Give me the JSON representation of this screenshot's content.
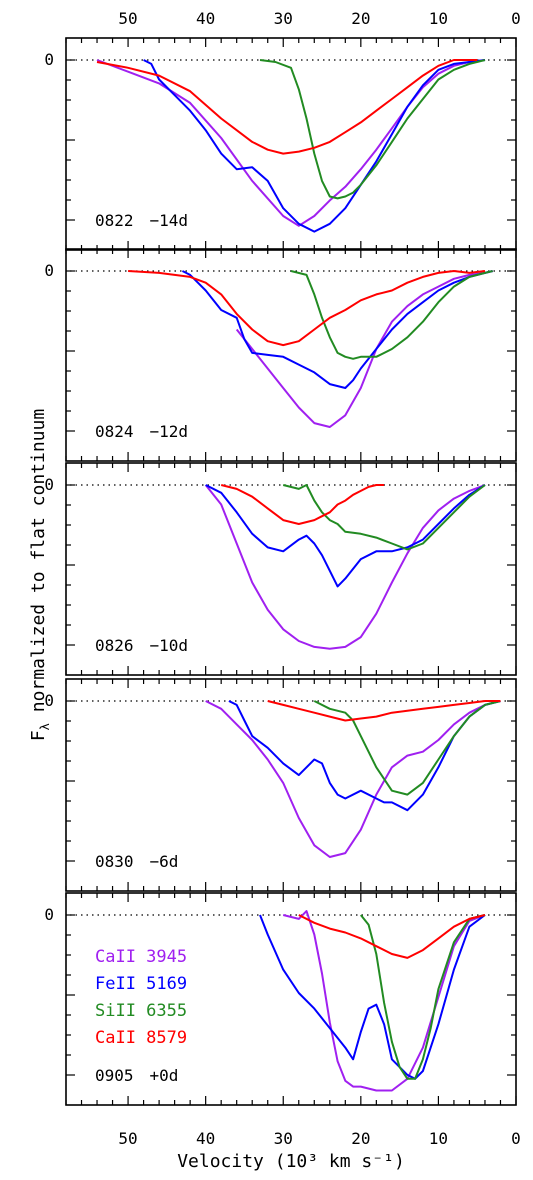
{
  "chart_data": {
    "type": "line",
    "xlabel": "Velocity (10³ km s⁻¹)",
    "ylabel": "F_λ normalized to flat continuum",
    "xlim": [
      58,
      0
    ],
    "x_ticks": [
      "50",
      "40",
      "30",
      "20",
      "10",
      "0"
    ],
    "y_tick": "0",
    "reference_line": "dotted y=0",
    "colors": {
      "CaII_3945": "#a020f0",
      "FeII_5169": "#0000ff",
      "SiII_6355": "#228b22",
      "CaII_8579": "#ff0000"
    },
    "legend": [
      {
        "name": "CaII 3945",
        "color": "#a020f0"
      },
      {
        "name": "FeII 5169",
        "color": "#0000ff"
      },
      {
        "name": "SiII 6355",
        "color": "#228b22"
      },
      {
        "name": "CaII 8579",
        "color": "#ff0000"
      }
    ],
    "panels": [
      {
        "id": "0822",
        "phase": "−14d",
        "series": [
          {
            "name": "CaII 3945",
            "x": [
              54,
              50,
              46,
              42,
              38,
              34,
              30,
              28,
              26,
              24,
              22,
              20,
              18,
              16,
              14,
              12,
              10,
              8,
              6,
              4
            ],
            "y": [
              0,
              -0.06,
              -0.12,
              -0.22,
              -0.4,
              -0.62,
              -0.8,
              -0.85,
              -0.8,
              -0.72,
              -0.65,
              -0.56,
              -0.46,
              -0.35,
              -0.24,
              -0.14,
              -0.07,
              -0.03,
              -0.01,
              0
            ]
          },
          {
            "name": "FeII 5169",
            "x": [
              48,
              47,
              46,
              44,
              42,
              40,
              38,
              36,
              34,
              32,
              30,
              28,
              26,
              24,
              22,
              20,
              18,
              16,
              14,
              12,
              10,
              8,
              6,
              4
            ],
            "y": [
              0,
              -0.02,
              -0.1,
              -0.18,
              -0.26,
              -0.36,
              -0.48,
              -0.56,
              -0.55,
              -0.62,
              -0.76,
              -0.84,
              -0.88,
              -0.84,
              -0.76,
              -0.64,
              -0.52,
              -0.38,
              -0.24,
              -0.13,
              -0.05,
              -0.02,
              -0.01,
              0
            ]
          },
          {
            "name": "SiII 6355",
            "x": [
              33,
              31,
              29,
              28,
              27,
              26,
              25,
              24,
              23,
              22,
              21,
              20,
              18,
              16,
              14,
              12,
              10,
              8,
              6,
              4
            ],
            "y": [
              0,
              -0.01,
              -0.04,
              -0.15,
              -0.3,
              -0.48,
              -0.62,
              -0.7,
              -0.71,
              -0.7,
              -0.68,
              -0.64,
              -0.54,
              -0.42,
              -0.3,
              -0.2,
              -0.1,
              -0.05,
              -0.02,
              0
            ]
          },
          {
            "name": "CaII 8579",
            "x": [
              54,
              50,
              46,
              42,
              38,
              34,
              32,
              30,
              28,
              26,
              24,
              22,
              20,
              18,
              16,
              14,
              12,
              10,
              8,
              6,
              5
            ],
            "y": [
              -0.01,
              -0.04,
              -0.08,
              -0.16,
              -0.3,
              -0.42,
              -0.46,
              -0.48,
              -0.47,
              -0.45,
              -0.42,
              -0.37,
              -0.32,
              -0.26,
              -0.2,
              -0.14,
              -0.08,
              -0.03,
              0,
              0,
              0
            ]
          }
        ]
      },
      {
        "id": "0824",
        "phase": "−12d",
        "series": [
          {
            "name": "CaII 3945",
            "x": [
              36,
              34,
              32,
              30,
              28,
              26,
              24,
              22,
              20,
              18,
              16,
              14,
              12,
              10,
              8,
              6,
              4,
              3
            ],
            "y": [
              -0.3,
              -0.4,
              -0.5,
              -0.6,
              -0.7,
              -0.78,
              -0.8,
              -0.74,
              -0.6,
              -0.4,
              -0.26,
              -0.18,
              -0.12,
              -0.08,
              -0.04,
              -0.02,
              -0.01,
              0
            ]
          },
          {
            "name": "FeII 5169",
            "x": [
              43,
              42,
              41,
              40,
              38,
              36,
              35,
              34,
              32,
              30,
              28,
              26,
              24,
              22,
              21,
              20,
              18,
              16,
              14,
              12,
              10,
              8,
              6,
              4,
              3
            ],
            "y": [
              0,
              -0.02,
              -0.06,
              -0.1,
              -0.2,
              -0.24,
              -0.35,
              -0.42,
              -0.43,
              -0.44,
              -0.48,
              -0.52,
              -0.58,
              -0.6,
              -0.56,
              -0.5,
              -0.4,
              -0.3,
              -0.22,
              -0.16,
              -0.1,
              -0.06,
              -0.03,
              -0.01,
              0
            ]
          },
          {
            "name": "SiII 6355",
            "x": [
              29,
              27,
              26,
              25,
              24,
              23,
              22,
              21,
              20,
              18,
              16,
              14,
              12,
              10,
              8,
              6,
              4,
              3
            ],
            "y": [
              0,
              -0.02,
              -0.12,
              -0.24,
              -0.34,
              -0.42,
              -0.44,
              -0.45,
              -0.44,
              -0.44,
              -0.4,
              -0.34,
              -0.26,
              -0.16,
              -0.08,
              -0.03,
              -0.01,
              0
            ]
          },
          {
            "name": "CaII 8579",
            "x": [
              50,
              46,
              42,
              40,
              38,
              36,
              34,
              32,
              30,
              28,
              26,
              24,
              22,
              20,
              18,
              16,
              14,
              12,
              10,
              8,
              6,
              4
            ],
            "y": [
              0,
              -0.01,
              -0.03,
              -0.06,
              -0.12,
              -0.22,
              -0.3,
              -0.36,
              -0.38,
              -0.36,
              -0.3,
              -0.24,
              -0.2,
              -0.15,
              -0.12,
              -0.1,
              -0.06,
              -0.03,
              -0.01,
              0,
              -0.01,
              0
            ]
          }
        ]
      },
      {
        "id": "0826",
        "phase": "−10d",
        "series": [
          {
            "name": "CaII 3945",
            "x": [
              40,
              38,
              36,
              34,
              32,
              30,
              28,
              26,
              24,
              22,
              20,
              18,
              16,
              14,
              12,
              10,
              8,
              6,
              4
            ],
            "y": [
              0,
              -0.1,
              -0.3,
              -0.5,
              -0.64,
              -0.74,
              -0.8,
              -0.83,
              -0.84,
              -0.83,
              -0.78,
              -0.66,
              -0.5,
              -0.35,
              -0.22,
              -0.13,
              -0.07,
              -0.03,
              0
            ]
          },
          {
            "name": "FeII 5169",
            "x": [
              40,
              38,
              36,
              34,
              32,
              30,
              28,
              27,
              26,
              25,
              24,
              23,
              22,
              20,
              18,
              16,
              14,
              12,
              10,
              8,
              6,
              4
            ],
            "y": [
              0,
              -0.04,
              -0.14,
              -0.25,
              -0.32,
              -0.34,
              -0.28,
              -0.26,
              -0.3,
              -0.36,
              -0.44,
              -0.52,
              -0.48,
              -0.38,
              -0.34,
              -0.34,
              -0.32,
              -0.28,
              -0.2,
              -0.12,
              -0.05,
              0
            ]
          },
          {
            "name": "SiII 6355",
            "x": [
              30,
              28,
              27,
              26,
              25,
              24,
              23,
              22,
              20,
              18,
              16,
              14,
              12,
              10,
              8,
              6,
              4
            ],
            "y": [
              0,
              -0.02,
              0,
              -0.08,
              -0.14,
              -0.18,
              -0.2,
              -0.24,
              -0.25,
              -0.27,
              -0.3,
              -0.33,
              -0.3,
              -0.22,
              -0.14,
              -0.06,
              0
            ]
          },
          {
            "name": "CaII 8579",
            "x": [
              38,
              36,
              34,
              32,
              30,
              28,
              26,
              25,
              24,
              23,
              22,
              21,
              20,
              19,
              18,
              17
            ],
            "y": [
              0,
              -0.02,
              -0.06,
              -0.12,
              -0.18,
              -0.2,
              -0.18,
              -0.16,
              -0.14,
              -0.1,
              -0.08,
              -0.05,
              -0.03,
              -0.01,
              0,
              0
            ]
          }
        ]
      },
      {
        "id": "0830",
        "phase": "−6d",
        "series": [
          {
            "name": "CaII 3945",
            "x": [
              40,
              38,
              36,
              34,
              32,
              30,
              28,
              26,
              24,
              22,
              20,
              18,
              16,
              14,
              12,
              10,
              8,
              6,
              4,
              2
            ],
            "y": [
              0,
              -0.04,
              -0.12,
              -0.2,
              -0.3,
              -0.42,
              -0.6,
              -0.74,
              -0.8,
              -0.78,
              -0.66,
              -0.48,
              -0.34,
              -0.28,
              -0.26,
              -0.2,
              -0.12,
              -0.06,
              -0.02,
              0
            ]
          },
          {
            "name": "FeII 5169",
            "x": [
              37,
              36,
              35,
              34,
              32,
              30,
              28,
              26,
              25,
              24,
              23,
              22,
              20,
              18,
              17,
              16,
              14,
              12,
              10,
              8,
              6,
              4,
              2
            ],
            "y": [
              0,
              -0.02,
              -0.1,
              -0.18,
              -0.24,
              -0.32,
              -0.38,
              -0.3,
              -0.32,
              -0.42,
              -0.48,
              -0.5,
              -0.46,
              -0.5,
              -0.52,
              -0.52,
              -0.56,
              -0.48,
              -0.34,
              -0.18,
              -0.08,
              -0.02,
              0
            ]
          },
          {
            "name": "SiII 6355",
            "x": [
              26,
              24,
              22,
              21,
              20,
              18,
              16,
              14,
              12,
              10,
              8,
              6,
              4,
              2
            ],
            "y": [
              0,
              -0.04,
              -0.06,
              -0.1,
              -0.18,
              -0.34,
              -0.46,
              -0.48,
              -0.42,
              -0.3,
              -0.18,
              -0.08,
              -0.02,
              0
            ]
          },
          {
            "name": "CaII 8579",
            "x": [
              32,
              30,
              28,
              26,
              24,
              22,
              20,
              18,
              16,
              14,
              12,
              10,
              8,
              6,
              4,
              2
            ],
            "y": [
              0,
              -0.02,
              -0.04,
              -0.06,
              -0.08,
              -0.1,
              -0.09,
              -0.08,
              -0.06,
              -0.05,
              -0.04,
              -0.03,
              -0.02,
              -0.01,
              0,
              0
            ]
          }
        ]
      },
      {
        "id": "0905",
        "phase": "+0d",
        "series": [
          {
            "name": "CaII 3945",
            "x": [
              30,
              28,
              27,
              26,
              25,
              24,
              23,
              22,
              21,
              20,
              18,
              16,
              14,
              12,
              10,
              8,
              6,
              4
            ],
            "y": [
              0,
              -0.02,
              0.02,
              -0.1,
              -0.3,
              -0.55,
              -0.75,
              -0.85,
              -0.88,
              -0.88,
              -0.9,
              -0.9,
              -0.84,
              -0.68,
              -0.42,
              -0.16,
              -0.03,
              0
            ]
          },
          {
            "name": "FeII 5169",
            "x": [
              33,
              32,
              30,
              28,
              26,
              24,
              22,
              21,
              20,
              19,
              18,
              17,
              16,
              14,
              13,
              12,
              10,
              8,
              6,
              4
            ],
            "y": [
              0,
              -0.1,
              -0.28,
              -0.4,
              -0.48,
              -0.58,
              -0.68,
              -0.74,
              -0.6,
              -0.48,
              -0.46,
              -0.56,
              -0.74,
              -0.82,
              -0.84,
              -0.8,
              -0.56,
              -0.28,
              -0.06,
              0
            ]
          },
          {
            "name": "SiII 6355",
            "x": [
              20,
              19,
              18,
              17,
              16,
              15,
              14,
              13,
              12,
              11,
              10,
              8,
              6,
              4
            ],
            "y": [
              0,
              -0.05,
              -0.2,
              -0.45,
              -0.65,
              -0.78,
              -0.84,
              -0.84,
              -0.74,
              -0.58,
              -0.38,
              -0.14,
              -0.02,
              0
            ]
          },
          {
            "name": "CaII 8579",
            "x": [
              28,
              26,
              24,
              22,
              20,
              18,
              16,
              14,
              12,
              10,
              8,
              6,
              4
            ],
            "y": [
              0,
              -0.04,
              -0.07,
              -0.09,
              -0.12,
              -0.16,
              -0.2,
              -0.22,
              -0.18,
              -0.12,
              -0.06,
              -0.02,
              0
            ]
          }
        ]
      }
    ]
  }
}
